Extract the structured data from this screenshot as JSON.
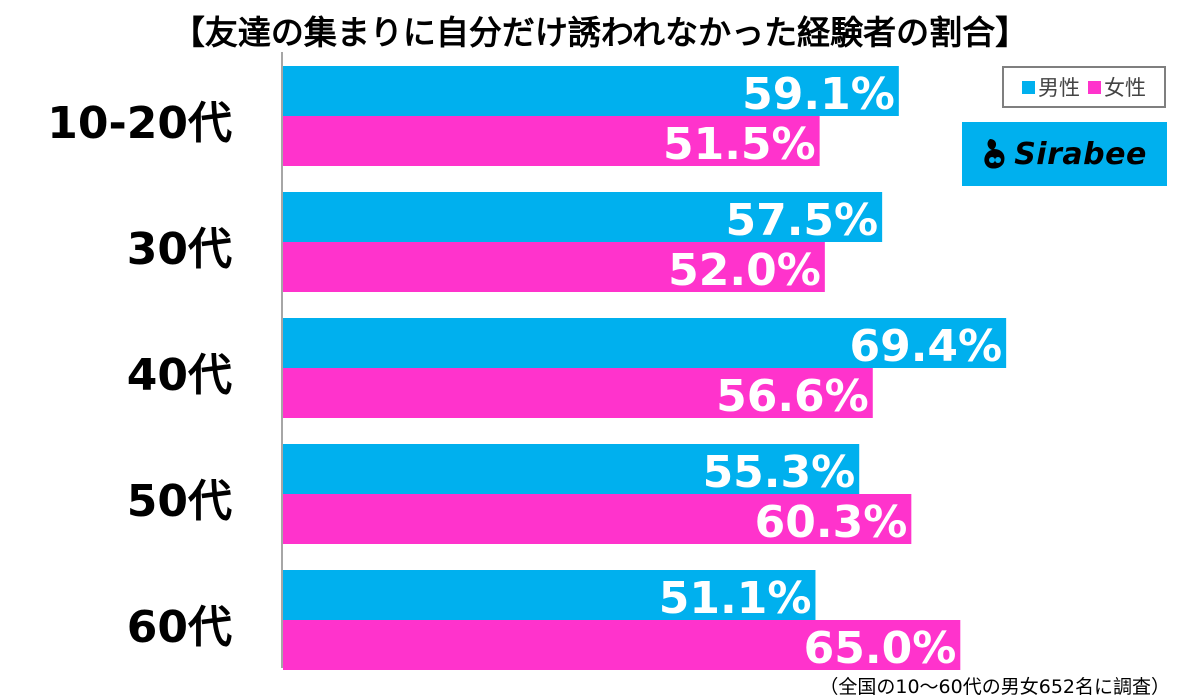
{
  "title": "【友達の集まりに自分だけ誘われなかった経験者の割合】",
  "legend": {
    "male": "男性",
    "female": "女性"
  },
  "logo": {
    "text": "Sirabee"
  },
  "footnote": "（全国の10〜60代の男女652名に調査）",
  "colors": {
    "male": "#00b0ee",
    "female": "#ff33cc",
    "axis": "#a6a6a6"
  },
  "chart_data": {
    "type": "bar",
    "orientation": "horizontal",
    "title": "【友達の集まりに自分だけ誘われなかった経験者の割合】",
    "categories": [
      "10-20代",
      "30代",
      "40代",
      "50代",
      "60代"
    ],
    "series": [
      {
        "name": "男性",
        "values": [
          59.1,
          57.5,
          69.4,
          55.3,
          51.1
        ],
        "labels": [
          "59.1%",
          "57.5%",
          "69.4%",
          "55.3%",
          "51.1%"
        ]
      },
      {
        "name": "女性",
        "values": [
          51.5,
          52.0,
          56.6,
          60.3,
          65.0
        ],
        "labels": [
          "51.5%",
          "52.0%",
          "56.6%",
          "60.3%",
          "65.0%"
        ]
      }
    ],
    "xlim": [
      0,
      100
    ],
    "grid": false,
    "legend_position": "top-right"
  }
}
